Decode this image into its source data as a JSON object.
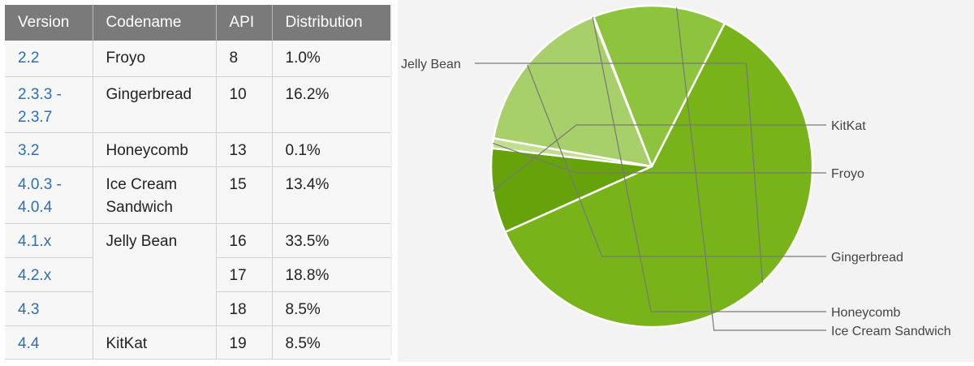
{
  "table": {
    "headers": [
      "Version",
      "Codename",
      "API",
      "Distribution"
    ],
    "rows": [
      {
        "version": "2.2",
        "codename": "Froyo",
        "api": "8",
        "distribution": "1.0%"
      },
      {
        "version": "2.3.3 - 2.3.7",
        "codename": "Gingerbread",
        "api": "10",
        "distribution": "16.2%"
      },
      {
        "version": "3.2",
        "codename": "Honeycomb",
        "api": "13",
        "distribution": "0.1%"
      },
      {
        "version": "4.0.3 - 4.0.4",
        "codename": "Ice Cream Sandwich",
        "api": "15",
        "distribution": "13.4%"
      },
      {
        "version": "4.1.x",
        "codename": "Jelly Bean",
        "api": "16",
        "distribution": "33.5%"
      },
      {
        "version": "4.2.x",
        "codename": "",
        "api": "17",
        "distribution": "18.8%"
      },
      {
        "version": "4.3",
        "codename": "",
        "api": "18",
        "distribution": "8.5%"
      },
      {
        "version": "4.4",
        "codename": "KitKat",
        "api": "19",
        "distribution": "8.5%"
      }
    ]
  },
  "chart_data": {
    "type": "pie",
    "unit": "%",
    "slices": [
      {
        "label": "Jelly Bean",
        "value": 60.8,
        "color": "#77b319"
      },
      {
        "label": "KitKat",
        "value": 8.5,
        "color": "#66a30a"
      },
      {
        "label": "Froyo",
        "value": 1.0,
        "color": "#c2df8f"
      },
      {
        "label": "Gingerbread",
        "value": 16.2,
        "color": "#a8d06a"
      },
      {
        "label": "Honeycomb",
        "value": 0.1,
        "color": "#b9d982"
      },
      {
        "label": "Ice Cream Sandwich",
        "value": 13.4,
        "color": "#8ec33e"
      }
    ]
  }
}
